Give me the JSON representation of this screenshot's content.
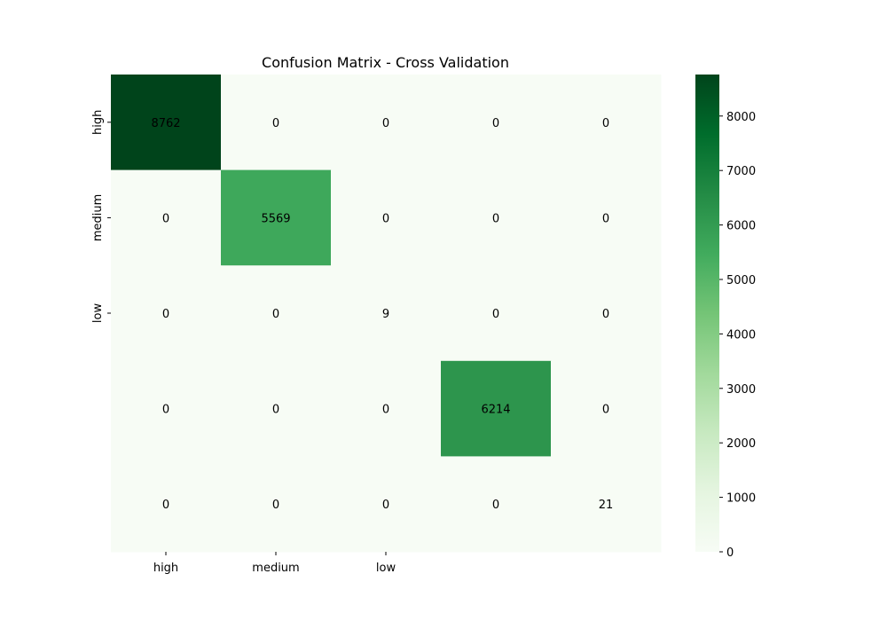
{
  "chart_data": {
    "type": "heatmap",
    "title": "Confusion Matrix - Cross Validation",
    "xlabel": "",
    "ylabel": "",
    "x_tick_labels": [
      "high",
      "medium",
      "low",
      "",
      ""
    ],
    "y_tick_labels": [
      "high",
      "medium",
      "low",
      "",
      ""
    ],
    "matrix": [
      [
        8762,
        0,
        0,
        0,
        0
      ],
      [
        0,
        5569,
        0,
        0,
        0
      ],
      [
        0,
        0,
        9,
        0,
        0
      ],
      [
        0,
        0,
        0,
        6214,
        0
      ],
      [
        0,
        0,
        0,
        0,
        21
      ]
    ],
    "colormap": "Greens",
    "colorbar": {
      "range": [
        0,
        8762
      ],
      "ticks": [
        0,
        1000,
        2000,
        3000,
        4000,
        5000,
        6000,
        7000,
        8000
      ]
    },
    "colors": {
      "low": "#f7fcf5",
      "high": "#00441b",
      "annotation_dark": "#262626",
      "annotation_light": "#ffffff"
    },
    "grid": false
  }
}
